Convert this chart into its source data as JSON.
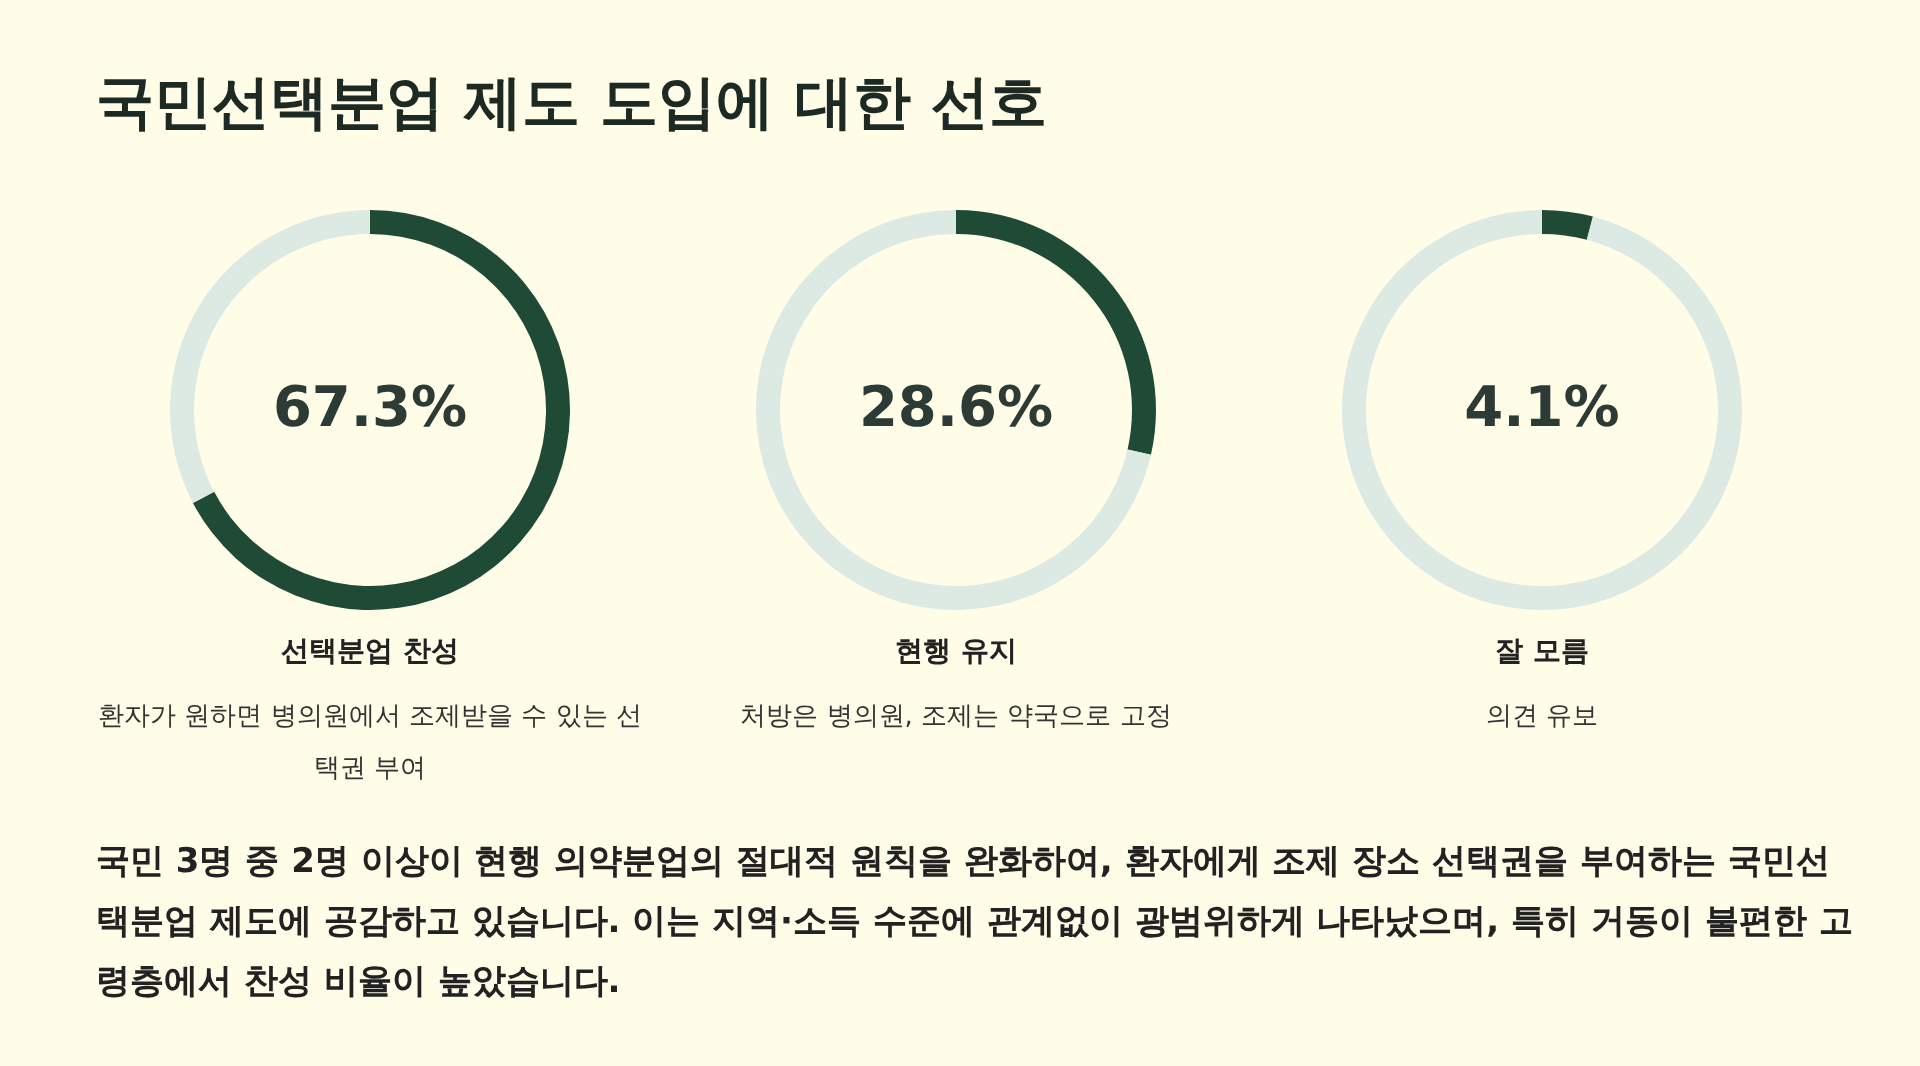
{
  "chart_data": [
    {
      "type": "other",
      "title": "국민선택분업 제도 도입에 대한 선호"
    },
    {
      "type": "donut",
      "title": "선택분업 찬성",
      "subtitle": "환자가 원하면 병의원에서 조제받을 수 있는 선택권 부여",
      "categories": [
        null,
        null
      ],
      "values": [
        67.3,
        32.7
      ],
      "colors": [
        "#1f4a35",
        "#dde9e3"
      ],
      "annotations": [
        "67.3%"
      ]
    },
    {
      "type": "donut",
      "title": "현행 유지",
      "subtitle": "처방은 병의원, 조제는 약국으로 고정",
      "categories": [
        null,
        null
      ],
      "values": [
        28.6,
        71.4
      ],
      "colors": [
        "#1f4a35",
        "#dde9e3"
      ],
      "annotations": [
        "28.6%"
      ]
    },
    {
      "type": "donut",
      "title": "잘 모름",
      "subtitle": "의견 유보",
      "categories": [
        null,
        null
      ],
      "values": [
        4.1,
        95.9
      ],
      "colors": [
        "#1f4a35",
        "#dde9e3"
      ],
      "annotations": [
        "4.1%"
      ]
    },
    {
      "type": "other",
      "annotations": [
        "국민 3명 중 2명 이상이 현행 의약분업의 절대적 원칙을 완화하여, 환자에게 조제 장소 선택권을 부여하는 국민선택분업 제도에 공감하고 있습니다. 이는 지역·소득 수준에 관계없이 광범위하게 나타났으며, 특히 거동이 불편한 고령층에서 찬성 비율이 높았습니다."
      ]
    }
  ]
}
